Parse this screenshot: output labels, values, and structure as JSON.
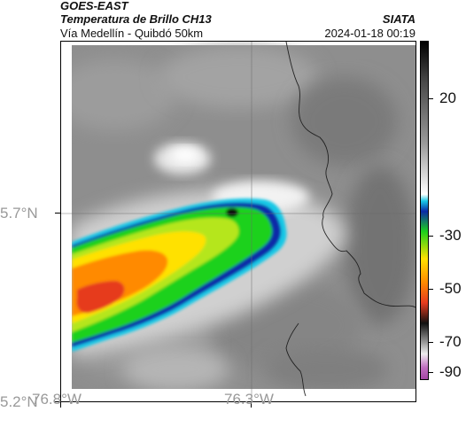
{
  "header": {
    "satellite": "GOES-EAST",
    "product": "Temperatura de Brillo CH13",
    "region": "Vía Medellín - Quibdó 50km",
    "organization": "SIATA",
    "timestamp": "2024-01-18 00:19"
  },
  "axes": {
    "lat_labels": [
      "5.7°N",
      "5.2°N"
    ],
    "lon_labels": [
      "76.8°W",
      "76.3°W"
    ]
  },
  "colorbar": {
    "labels": [
      "20",
      "-30",
      "-50",
      "-70",
      "-90"
    ],
    "colors": {
      "cold_magenta": "#a040a0",
      "red": "#e63b1f",
      "orange": "#ff8a00",
      "yellow": "#ffe100",
      "green": "#1cd11c",
      "cyan": "#18c8e6",
      "blue": "#0a2aa8",
      "black": "#111111",
      "white": "#ffffff"
    }
  },
  "map": {
    "background": "#8a8a8a",
    "border_color": "#222222"
  }
}
